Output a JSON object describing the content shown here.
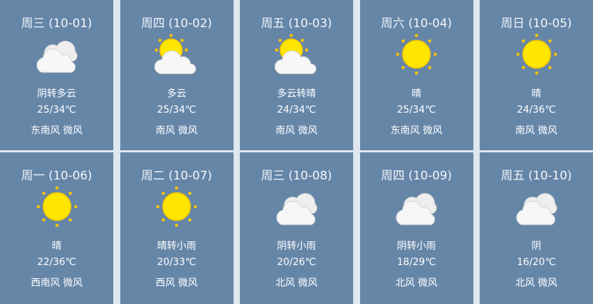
{
  "colors": {
    "card": "#6686a8",
    "background": "#dfe7ef",
    "sun": "#ffe100",
    "cloud": "#f5f5f5"
  },
  "days": [
    {
      "title": "周三 (10-01)",
      "icon": "cloudy-icon",
      "desc": "阴转多云",
      "temp": "25/34℃",
      "wind": "东南风 微风"
    },
    {
      "title": "周四 (10-02)",
      "icon": "partly-cloudy-icon",
      "desc": "多云",
      "temp": "25/34℃",
      "wind": "南风 微风"
    },
    {
      "title": "周五 (10-03)",
      "icon": "partly-cloudy-icon",
      "desc": "多云转晴",
      "temp": "24/34℃",
      "wind": "南风 微风"
    },
    {
      "title": "周六 (10-04)",
      "icon": "sun-icon",
      "desc": "晴",
      "temp": "25/34℃",
      "wind": "东南风 微风"
    },
    {
      "title": "周日 (10-05)",
      "icon": "sun-icon",
      "desc": "晴",
      "temp": "24/36℃",
      "wind": "南风 微风"
    },
    {
      "title": "周一 (10-06)",
      "icon": "sun-icon",
      "desc": "晴",
      "temp": "22/36℃",
      "wind": "西南风 微风"
    },
    {
      "title": "周二 (10-07)",
      "icon": "sun-icon",
      "desc": "晴转小雨",
      "temp": "20/33℃",
      "wind": "西风 微风"
    },
    {
      "title": "周三 (10-08)",
      "icon": "cloudy-icon",
      "desc": "阴转小雨",
      "temp": "20/26℃",
      "wind": "北风 微风"
    },
    {
      "title": "周四 (10-09)",
      "icon": "cloudy-icon",
      "desc": "阴转小雨",
      "temp": "18/29℃",
      "wind": "北风 微风"
    },
    {
      "title": "周五 (10-10)",
      "icon": "cloudy-icon",
      "desc": "阴",
      "temp": "16/20℃",
      "wind": "北风 微风"
    }
  ]
}
